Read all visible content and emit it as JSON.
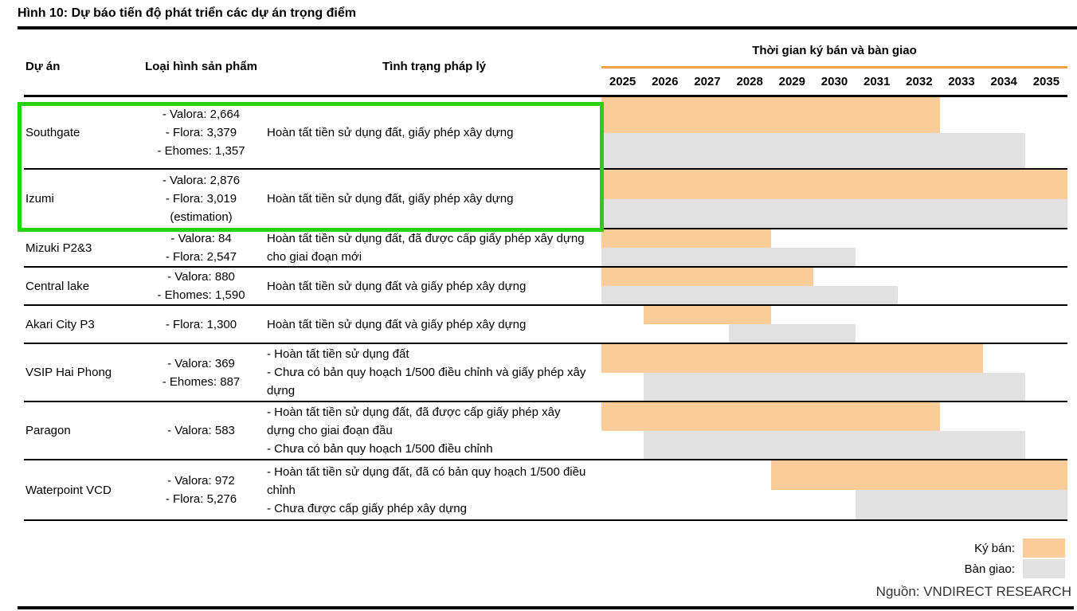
{
  "title": "Hình 10: Dự báo tiến độ phát triển các dự án trọng điểm",
  "table": {
    "columns": {
      "project": "Dự án",
      "product": "Loại hình sản phẩm",
      "legal": "Tình trạng pháp lý"
    },
    "gantt_header": "Thời gian ký bán và bàn giao",
    "years": [
      "2025",
      "2026",
      "2027",
      "2028",
      "2029",
      "2030",
      "2031",
      "2032",
      "2033",
      "2034",
      "2035"
    ],
    "rows": [
      {
        "project": "Southgate",
        "product_lines": [
          "- Valora: 2,664",
          "- Flora: 3,379",
          "- Ehomes: 1,357"
        ],
        "legal_lines": [
          "Hoàn tất tiền sử dụng đất, giấy phép xây dựng"
        ],
        "highlighted": true
      },
      {
        "project": "Izumi",
        "product_lines": [
          "- Valora: 2,876",
          "- Flora: 3,019",
          "(estimation)"
        ],
        "legal_lines": [
          "Hoàn tất tiền sử dụng đất, giấy phép xây dựng"
        ],
        "highlighted": true
      },
      {
        "project": "Mizuki P2&3",
        "product_lines": [
          "- Valora: 84",
          "- Flora: 2,547"
        ],
        "legal_lines": [
          "Hoàn tất tiền sử dụng đất, đã được cấp giấy phép xây dựng cho giai đoạn mới"
        ],
        "highlighted": false
      },
      {
        "project": "Central lake",
        "product_lines": [
          "- Valora: 880",
          "- Ehomes: 1,590"
        ],
        "legal_lines": [
          "Hoàn tất tiền sử dụng đất và giấy phép xây dựng"
        ],
        "highlighted": false
      },
      {
        "project": "Akari City P3",
        "product_lines": [
          "- Flora: 1,300"
        ],
        "legal_lines": [
          "Hoàn tất tiền sử dụng đất và giấy phép xây dựng"
        ],
        "highlighted": false
      },
      {
        "project": "VSIP Hai Phong",
        "product_lines": [
          "- Valora: 369",
          "- Ehomes: 887"
        ],
        "legal_lines": [
          "- Hoàn tất tiền sử dụng đất",
          "- Chưa có bản quy hoạch 1/500 điều chỉnh và giấy phép xây dựng"
        ],
        "highlighted": false
      },
      {
        "project": "Paragon",
        "product_lines": [
          "- Valora: 583"
        ],
        "legal_lines": [
          "- Hoàn tất tiền sử dụng đất, đã được cấp giấy phép xây dựng cho giai đoạn đầu",
          "- Chưa có bản quy hoạch 1/500 điều chỉnh"
        ],
        "highlighted": false
      },
      {
        "project": "Waterpoint VCD",
        "product_lines": [
          "- Valora: 972",
          "- Flora: 5,276"
        ],
        "legal_lines": [
          "- Hoàn tất tiền sử dụng đất, đã có bản quy hoạch 1/500 điều chỉnh",
          "- Chưa được cấp giấy phép xây dựng"
        ],
        "highlighted": false
      }
    ]
  },
  "chart_data": {
    "type": "gantt",
    "title": "Thời gian ký bán và bàn giao",
    "x_axis": {
      "start_year": 2025,
      "end_year": 2035,
      "tick_years": [
        2025,
        2026,
        2027,
        2028,
        2029,
        2030,
        2031,
        2032,
        2033,
        2034,
        2035
      ]
    },
    "legend_position": "bottom-right",
    "series_meaning": {
      "sale": "Ký bán (signing period)",
      "handover": "Bàn giao (handover period)"
    },
    "tasks": [
      {
        "project": "Southgate",
        "sale": [
          2025,
          2032
        ],
        "handover": [
          2025,
          2034
        ]
      },
      {
        "project": "Izumi",
        "sale": [
          2025,
          2035
        ],
        "handover": [
          2025,
          2035
        ]
      },
      {
        "project": "Mizuki P2&3",
        "sale": [
          2025,
          2028
        ],
        "handover": [
          2025,
          2030
        ]
      },
      {
        "project": "Central lake",
        "sale": [
          2025,
          2029
        ],
        "handover": [
          2025,
          2031
        ]
      },
      {
        "project": "Akari City P3",
        "sale": [
          2026,
          2028
        ],
        "handover": [
          2028,
          2030
        ]
      },
      {
        "project": "VSIP Hai Phong",
        "sale": [
          2025,
          2033
        ],
        "handover": [
          2026,
          2034
        ]
      },
      {
        "project": "Paragon",
        "sale": [
          2025,
          2032
        ],
        "handover": [
          2026,
          2034
        ]
      },
      {
        "project": "Waterpoint VCD",
        "sale": [
          2029,
          2035
        ],
        "handover": [
          2031,
          2035
        ]
      }
    ]
  },
  "legend": {
    "sale_label": "Ký bán:",
    "handover_label": "Bàn giao:"
  },
  "source": "Nguồn: VNDIRECT RESEARCH",
  "colors": {
    "sale": "#FBCB99",
    "handover": "#E1E1E1",
    "accent_line": "#F2A243",
    "highlight_border": "#27D110"
  }
}
